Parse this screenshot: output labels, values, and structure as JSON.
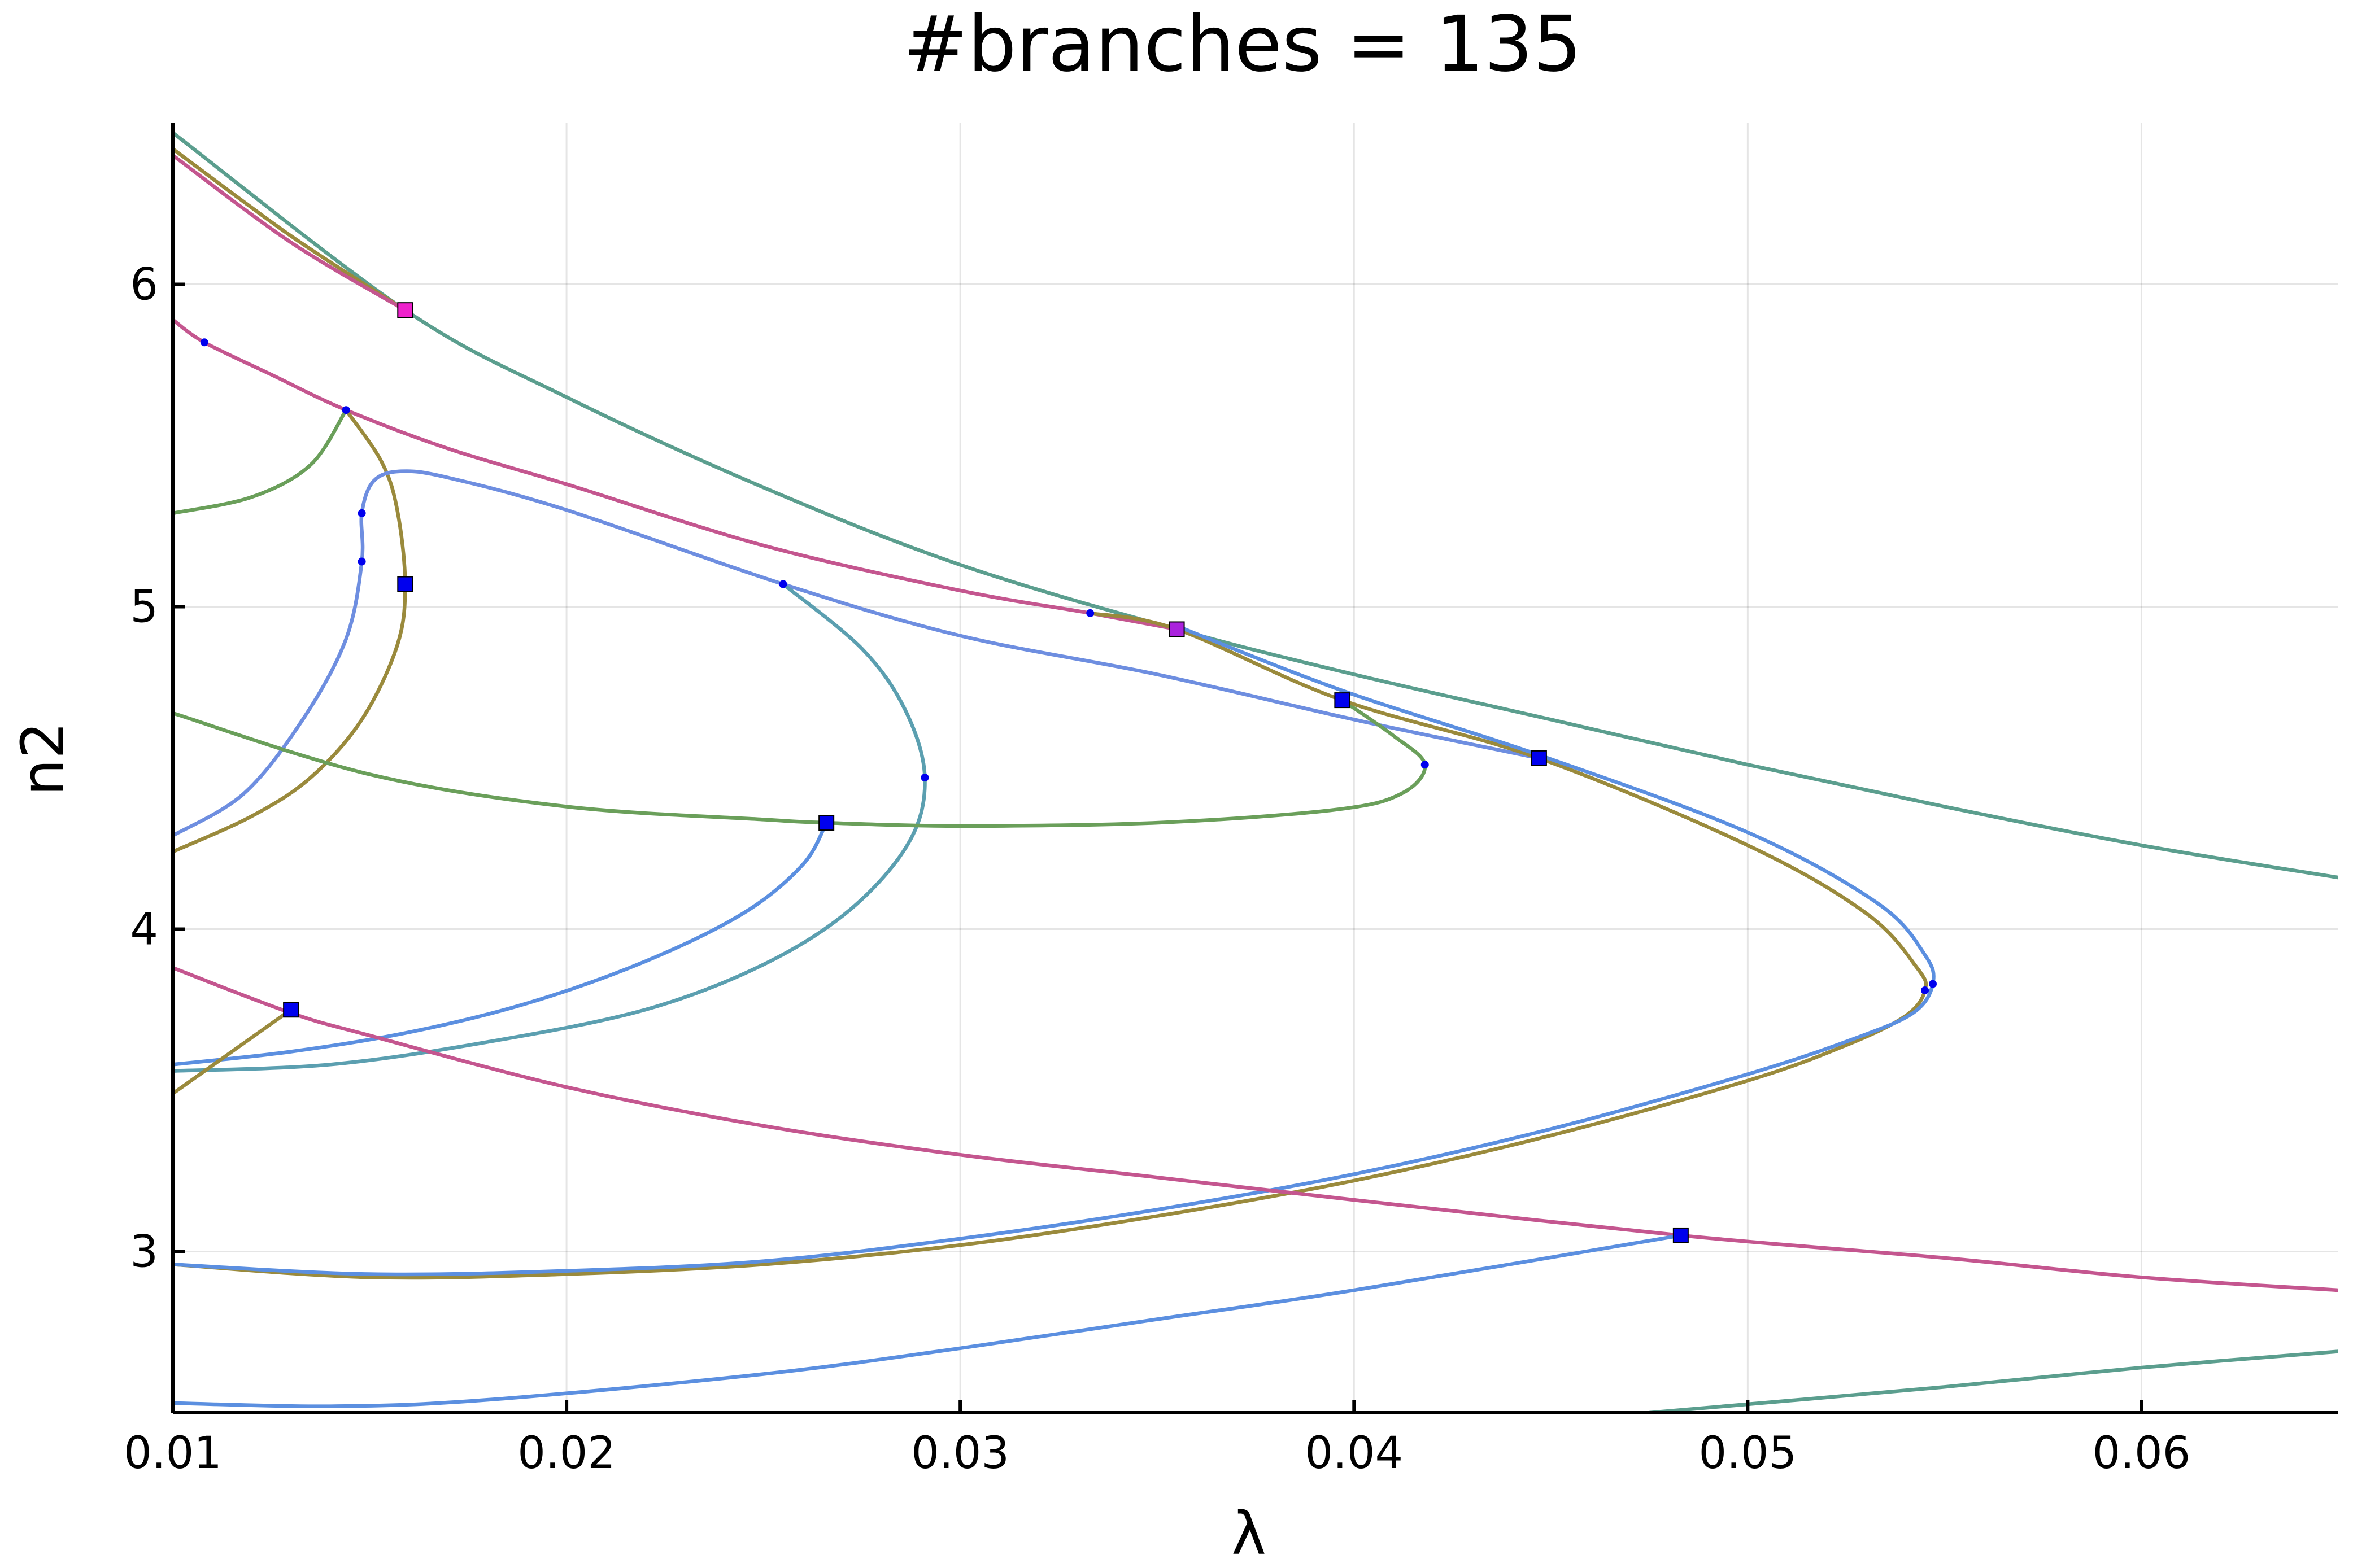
{
  "chart_data": {
    "type": "line",
    "title": "#branches = 135",
    "xlabel": "λ",
    "ylabel": "n2",
    "xlim": [
      0.01,
      0.065
    ],
    "ylim": [
      2.5,
      6.5
    ],
    "grid": true,
    "legend": "none",
    "xticks": [
      {
        "value": 0.01,
        "label": "0.01"
      },
      {
        "value": 0.02,
        "label": "0.02"
      },
      {
        "value": 0.03,
        "label": "0.03"
      },
      {
        "value": 0.04,
        "label": "0.04"
      },
      {
        "value": 0.05,
        "label": "0.05"
      },
      {
        "value": 0.06,
        "label": "0.06"
      }
    ],
    "yticks": [
      {
        "value": 3,
        "label": "3"
      },
      {
        "value": 4,
        "label": "4"
      },
      {
        "value": 5,
        "label": "5"
      },
      {
        "value": 6,
        "label": "6"
      }
    ],
    "series": [
      {
        "color": "#5b9e8e",
        "points": [
          [
            0.01,
            6.47
          ],
          [
            0.0159,
            5.92
          ],
          [
            0.02,
            5.65
          ],
          [
            0.025,
            5.37
          ],
          [
            0.03,
            5.13
          ],
          [
            0.0355,
            4.93
          ],
          [
            0.04,
            4.79
          ],
          [
            0.045,
            4.65
          ],
          [
            0.05,
            4.51
          ],
          [
            0.055,
            4.38
          ],
          [
            0.06,
            4.26
          ],
          [
            0.065,
            4.16
          ]
        ]
      },
      {
        "color": "#9a8a3c",
        "points": [
          [
            0.01,
            6.42
          ],
          [
            0.013,
            6.15
          ],
          [
            0.0159,
            5.92
          ]
        ]
      },
      {
        "color": "#c4568f",
        "points": [
          [
            0.01,
            6.4
          ],
          [
            0.013,
            6.13
          ],
          [
            0.0159,
            5.92
          ]
        ]
      },
      {
        "color": "#c4568f",
        "points": [
          [
            0.01,
            5.89
          ],
          [
            0.0108,
            5.82
          ],
          [
            0.0125,
            5.72
          ],
          [
            0.0144,
            5.61
          ],
          [
            0.017,
            5.49
          ],
          [
            0.02,
            5.38
          ],
          [
            0.025,
            5.19
          ],
          [
            0.03,
            5.05
          ],
          [
            0.0333,
            4.98
          ],
          [
            0.0355,
            4.93
          ]
        ]
      },
      {
        "color": "#6a9f5a",
        "points": [
          [
            0.01,
            5.29
          ],
          [
            0.012,
            5.34
          ],
          [
            0.0135,
            5.44
          ],
          [
            0.0144,
            5.61
          ]
        ]
      },
      {
        "color": "#9a8a3c",
        "points": [
          [
            0.0144,
            5.61
          ],
          [
            0.0153,
            5.45
          ],
          [
            0.0157,
            5.3
          ],
          [
            0.0159,
            5.07
          ],
          [
            0.0157,
            4.88
          ],
          [
            0.0148,
            4.65
          ],
          [
            0.0135,
            4.47
          ],
          [
            0.012,
            4.35
          ],
          [
            0.01,
            4.24
          ]
        ]
      },
      {
        "color": "#6e8ee0",
        "points": [
          [
            0.01,
            4.29
          ],
          [
            0.0118,
            4.42
          ],
          [
            0.0133,
            4.65
          ],
          [
            0.0144,
            4.9
          ],
          [
            0.0148,
            5.14
          ],
          [
            0.0148,
            5.29
          ],
          [
            0.0151,
            5.39
          ],
          [
            0.0158,
            5.42
          ],
          [
            0.017,
            5.4
          ],
          [
            0.02,
            5.3
          ],
          [
            0.0255,
            5.07
          ],
          [
            0.03,
            4.91
          ],
          [
            0.035,
            4.79
          ],
          [
            0.04,
            4.65
          ],
          [
            0.0447,
            4.53
          ]
        ]
      },
      {
        "color": "#5b9fb0",
        "points": [
          [
            0.0255,
            5.07
          ],
          [
            0.0275,
            4.87
          ],
          [
            0.0286,
            4.68
          ],
          [
            0.0291,
            4.47
          ],
          [
            0.0287,
            4.27
          ],
          [
            0.0272,
            4.06
          ],
          [
            0.025,
            3.89
          ],
          [
            0.022,
            3.75
          ],
          [
            0.018,
            3.65
          ],
          [
            0.014,
            3.58
          ],
          [
            0.01,
            3.56
          ]
        ]
      },
      {
        "color": "#6a9f5a",
        "points": [
          [
            0.01,
            4.67
          ],
          [
            0.015,
            4.48
          ],
          [
            0.02,
            4.38
          ],
          [
            0.025,
            4.34
          ],
          [
            0.0266,
            4.33
          ],
          [
            0.03,
            4.32
          ],
          [
            0.035,
            4.33
          ],
          [
            0.0395,
            4.37
          ],
          [
            0.0412,
            4.42
          ],
          [
            0.0418,
            4.51
          ],
          [
            0.041,
            4.6
          ],
          [
            0.0397,
            4.71
          ]
        ]
      },
      {
        "color": "#9a8a3c",
        "points": [
          [
            0.0333,
            4.98
          ],
          [
            0.0355,
            4.93
          ],
          [
            0.0397,
            4.71
          ],
          [
            0.0447,
            4.53
          ],
          [
            0.05,
            4.26
          ],
          [
            0.053,
            4.05
          ],
          [
            0.0543,
            3.88
          ],
          [
            0.0545,
            3.81
          ],
          [
            0.054,
            3.73
          ],
          [
            0.0525,
            3.64
          ],
          [
            0.05,
            3.53
          ],
          [
            0.045,
            3.36
          ],
          [
            0.04,
            3.22
          ],
          [
            0.035,
            3.11
          ],
          [
            0.03,
            3.02
          ],
          [
            0.025,
            2.96
          ],
          [
            0.02,
            2.93
          ],
          [
            0.015,
            2.92
          ],
          [
            0.01,
            2.96
          ]
        ]
      },
      {
        "color": "#5b8fe0",
        "points": [
          [
            0.0355,
            4.94
          ],
          [
            0.0397,
            4.74
          ],
          [
            0.0447,
            4.54
          ],
          [
            0.05,
            4.3
          ],
          [
            0.0533,
            4.08
          ],
          [
            0.0545,
            3.92
          ],
          [
            0.0547,
            3.83
          ],
          [
            0.0542,
            3.74
          ],
          [
            0.0527,
            3.66
          ],
          [
            0.05,
            3.55
          ],
          [
            0.045,
            3.38
          ],
          [
            0.04,
            3.24
          ],
          [
            0.035,
            3.13
          ],
          [
            0.03,
            3.04
          ],
          [
            0.025,
            2.97
          ],
          [
            0.02,
            2.94
          ],
          [
            0.015,
            2.93
          ],
          [
            0.01,
            2.96
          ]
        ]
      },
      {
        "color": "#5b8fe0",
        "points": [
          [
            0.0266,
            4.33
          ],
          [
            0.026,
            4.2
          ],
          [
            0.0245,
            4.05
          ],
          [
            0.022,
            3.9
          ],
          [
            0.019,
            3.77
          ],
          [
            0.016,
            3.68
          ],
          [
            0.013,
            3.62
          ],
          [
            0.01,
            3.58
          ]
        ]
      },
      {
        "color": "#c4568f",
        "points": [
          [
            0.01,
            3.88
          ],
          [
            0.013,
            3.74
          ],
          [
            0.015,
            3.67
          ],
          [
            0.02,
            3.51
          ],
          [
            0.025,
            3.39
          ],
          [
            0.03,
            3.3
          ],
          [
            0.035,
            3.23
          ],
          [
            0.04,
            3.16
          ],
          [
            0.0483,
            3.05
          ],
          [
            0.055,
            2.98
          ],
          [
            0.06,
            2.92
          ],
          [
            0.065,
            2.88
          ]
        ]
      },
      {
        "color": "#9a8a3c",
        "points": [
          [
            0.01,
            3.49
          ],
          [
            0.0115,
            3.62
          ],
          [
            0.013,
            3.75
          ]
        ]
      },
      {
        "color": "#5b8fe0",
        "points": [
          [
            0.01,
            2.53
          ],
          [
            0.014,
            2.52
          ],
          [
            0.018,
            2.54
          ],
          [
            0.025,
            2.62
          ],
          [
            0.03,
            2.7
          ],
          [
            0.035,
            2.79
          ],
          [
            0.04,
            2.88
          ],
          [
            0.0483,
            3.05
          ]
        ]
      },
      {
        "color": "#5b9e8e",
        "points": [
          [
            0.0475,
            2.5
          ],
          [
            0.055,
            2.58
          ],
          [
            0.06,
            2.64
          ],
          [
            0.065,
            2.69
          ]
        ]
      }
    ],
    "markers": [
      {
        "shape": "square",
        "color": "#ee22cc",
        "x": 0.0159,
        "y": 5.92
      },
      {
        "shape": "square",
        "color": "#0000ee",
        "x": 0.0159,
        "y": 5.07
      },
      {
        "shape": "square",
        "color": "#aa22dd",
        "x": 0.0355,
        "y": 4.93
      },
      {
        "shape": "square",
        "color": "#0000ee",
        "x": 0.0397,
        "y": 4.71
      },
      {
        "shape": "square",
        "color": "#0000ee",
        "x": 0.0447,
        "y": 4.53
      },
      {
        "shape": "square",
        "color": "#0000ee",
        "x": 0.0266,
        "y": 4.33
      },
      {
        "shape": "square",
        "color": "#0000ee",
        "x": 0.013,
        "y": 3.75
      },
      {
        "shape": "square",
        "color": "#0000ee",
        "x": 0.0483,
        "y": 3.05
      },
      {
        "shape": "dot",
        "color": "#0000ee",
        "x": 0.0108,
        "y": 5.82
      },
      {
        "shape": "dot",
        "color": "#0000ee",
        "x": 0.0144,
        "y": 5.61
      },
      {
        "shape": "dot",
        "color": "#0000ee",
        "x": 0.0148,
        "y": 5.29
      },
      {
        "shape": "dot",
        "color": "#0000ee",
        "x": 0.0148,
        "y": 5.14
      },
      {
        "shape": "dot",
        "color": "#0000ee",
        "x": 0.0255,
        "y": 5.07
      },
      {
        "shape": "dot",
        "color": "#0000ee",
        "x": 0.0333,
        "y": 4.98
      },
      {
        "shape": "dot",
        "color": "#0000ee",
        "x": 0.0291,
        "y": 4.47
      },
      {
        "shape": "dot",
        "color": "#0000ee",
        "x": 0.0418,
        "y": 4.51
      },
      {
        "shape": "dot",
        "color": "#0000ee",
        "x": 0.0547,
        "y": 3.83
      },
      {
        "shape": "dot",
        "color": "#0000ee",
        "x": 0.0545,
        "y": 3.81
      }
    ]
  }
}
